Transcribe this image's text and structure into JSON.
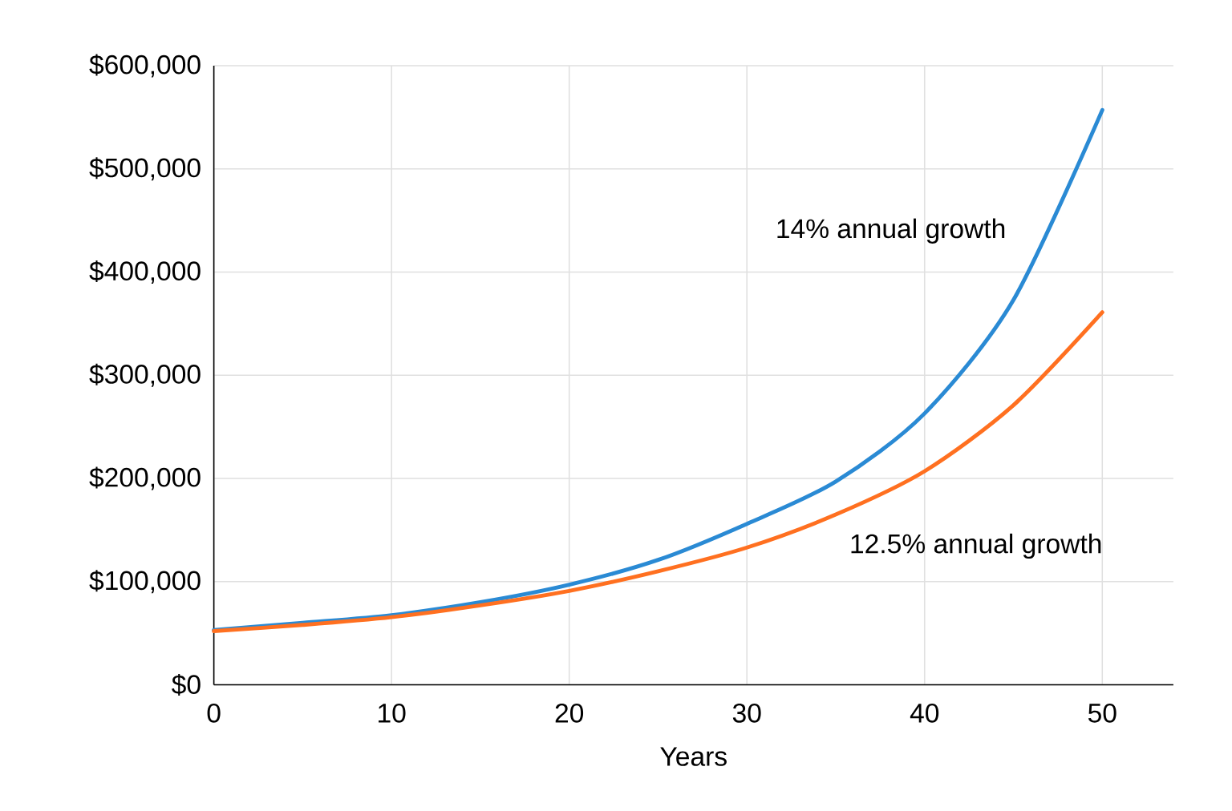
{
  "chart_data": {
    "type": "line",
    "xlabel": "Years",
    "x": [
      0,
      5,
      10,
      15,
      20,
      25,
      30,
      35,
      40,
      45,
      50
    ],
    "series": [
      {
        "name": "14% annual growth",
        "color": "#2a8ad4",
        "values": [
          53000,
          60000,
          67500,
          80000,
          97000,
          121000,
          156000,
          197000,
          263000,
          373000,
          557000
        ]
      },
      {
        "name": "12.5% annual growth",
        "color": "#ff7020",
        "values": [
          52000,
          58000,
          65500,
          77000,
          91000,
          110000,
          133000,
          165000,
          207000,
          271000,
          361000
        ]
      }
    ],
    "xlim": [
      0,
      54
    ],
    "xticks": [
      0,
      10,
      20,
      30,
      40,
      50
    ],
    "ylim": [
      0,
      600000
    ],
    "yticks": [
      {
        "value": 0,
        "label": "$0"
      },
      {
        "value": 100000,
        "label": "$100,000"
      },
      {
        "value": 200000,
        "label": "$200,000"
      },
      {
        "value": 300000,
        "label": "$300,000"
      },
      {
        "value": 400000,
        "label": "$400,000"
      },
      {
        "value": 500000,
        "label": "$500,000"
      },
      {
        "value": 600000,
        "label": "$600,000"
      }
    ],
    "grid": true
  }
}
